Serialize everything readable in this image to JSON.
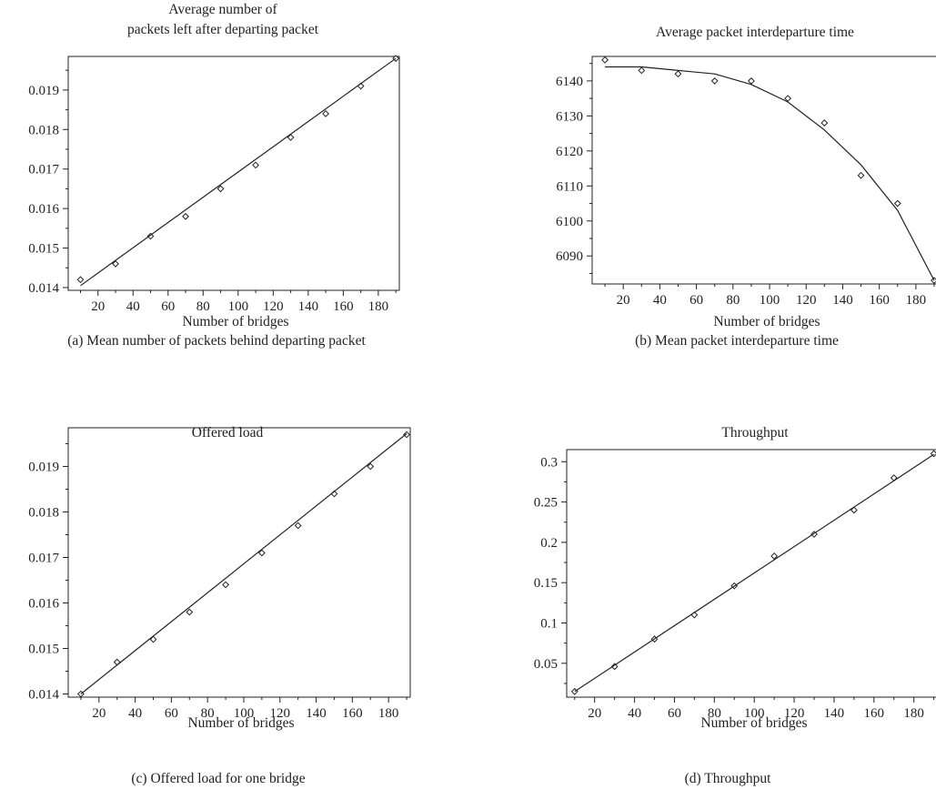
{
  "charts": [
    {
      "id": "a",
      "caption": "(a)  Mean number of packets behind departing packet",
      "chart_data": {
        "type": "scatter",
        "title_lines": [
          "Average number of",
          "packets left after departing packet"
        ],
        "xlabel": "Number of bridges",
        "ylabel": "",
        "xlim": [
          3,
          192
        ],
        "ylim": [
          0.01393,
          0.01985
        ],
        "xticks": [
          20,
          40,
          60,
          80,
          100,
          120,
          140,
          160,
          180
        ],
        "yticks": [
          0.014,
          0.015,
          0.016,
          0.017,
          0.018,
          0.019
        ],
        "ytick_labels": [
          "0.014",
          "0.015",
          "0.016",
          "0.017",
          "0.018",
          "0.019"
        ],
        "grid": false,
        "series": [
          {
            "kind": "points",
            "marker": "diamond",
            "x": [
              10,
              30,
              50,
              70,
              90,
              110,
              130,
              150,
              170,
              190
            ],
            "y": [
              0.0142,
              0.0146,
              0.0153,
              0.0158,
              0.0165,
              0.0171,
              0.0178,
              0.0184,
              0.0191,
              0.0198
            ]
          },
          {
            "kind": "line",
            "x": [
              10,
              190
            ],
            "y": [
              0.01405,
              0.0198
            ]
          }
        ]
      }
    },
    {
      "id": "b",
      "caption": "(b)  Mean packet interdeparture time",
      "chart_data": {
        "type": "scatter",
        "title_lines": [
          "Average packet interdeparture time"
        ],
        "xlabel": "Number of bridges",
        "ylabel": "",
        "xlim": [
          3,
          192
        ],
        "ylim": [
          6082,
          6147
        ],
        "xticks": [
          20,
          40,
          60,
          80,
          100,
          120,
          140,
          160,
          180
        ],
        "yticks": [
          6090,
          6100,
          6110,
          6120,
          6130,
          6140
        ],
        "ytick_labels": [
          "6090",
          "6100",
          "6110",
          "6120",
          "6130",
          "6140"
        ],
        "grid": false,
        "series": [
          {
            "kind": "points",
            "marker": "diamond",
            "x": [
              10,
              30,
              50,
              70,
              90,
              110,
              130,
              150,
              170,
              190
            ],
            "y": [
              6146,
              6143,
              6142,
              6140,
              6140,
              6135,
              6128,
              6113,
              6105,
              6083
            ]
          },
          {
            "kind": "line",
            "x": [
              10,
              30,
              50,
              70,
              90,
              110,
              130,
              150,
              170,
              190
            ],
            "y": [
              6144,
              6144,
              6143,
              6142,
              6139,
              6134,
              6126,
              6116,
              6103,
              6083
            ]
          }
        ]
      }
    },
    {
      "id": "c",
      "caption": "(c)  Offered load for one bridge",
      "chart_data": {
        "type": "scatter",
        "title_lines": [
          "Offered load"
        ],
        "xlabel": "Number of bridges",
        "ylabel": "",
        "xlim": [
          3,
          192
        ],
        "ylim": [
          0.01393,
          0.01985
        ],
        "xticks": [
          20,
          40,
          60,
          80,
          100,
          120,
          140,
          160,
          180
        ],
        "yticks": [
          0.014,
          0.015,
          0.016,
          0.017,
          0.018,
          0.019
        ],
        "ytick_labels": [
          "0.014",
          "0.015",
          "0.016",
          "0.017",
          "0.018",
          "0.019"
        ],
        "grid": false,
        "series": [
          {
            "kind": "points",
            "marker": "diamond",
            "x": [
              10,
              30,
              50,
              70,
              90,
              110,
              130,
              150,
              170,
              190
            ],
            "y": [
              0.014,
              0.0147,
              0.0152,
              0.0158,
              0.0164,
              0.0171,
              0.0177,
              0.0184,
              0.019,
              0.0197
            ]
          },
          {
            "kind": "line",
            "x": [
              10,
              190
            ],
            "y": [
              0.014,
              0.01972
            ]
          }
        ]
      }
    },
    {
      "id": "d",
      "caption": "(d)  Throughput",
      "chart_data": {
        "type": "scatter",
        "title_lines": [
          "Throughput"
        ],
        "xlabel": "Number of bridges",
        "ylabel": "",
        "xlim": [
          6,
          192
        ],
        "ylim": [
          0.008,
          0.315
        ],
        "xticks": [
          20,
          40,
          60,
          80,
          100,
          120,
          140,
          160,
          180
        ],
        "yticks": [
          0.05,
          0.1,
          0.15,
          0.2,
          0.25,
          0.3
        ],
        "ytick_labels": [
          "0.05",
          "0.1",
          "0.15",
          "0.2",
          "0.25",
          "0.3"
        ],
        "grid": false,
        "series": [
          {
            "kind": "points",
            "marker": "diamond",
            "x": [
              10,
              30,
              50,
              70,
              90,
              110,
              130,
              150,
              170,
              190
            ],
            "y": [
              0.015,
              0.046,
              0.08,
              0.11,
              0.146,
              0.183,
              0.21,
              0.24,
              0.28,
              0.31
            ]
          },
          {
            "kind": "line",
            "x": [
              10,
              190
            ],
            "y": [
              0.015,
              0.309
            ]
          }
        ]
      }
    }
  ]
}
